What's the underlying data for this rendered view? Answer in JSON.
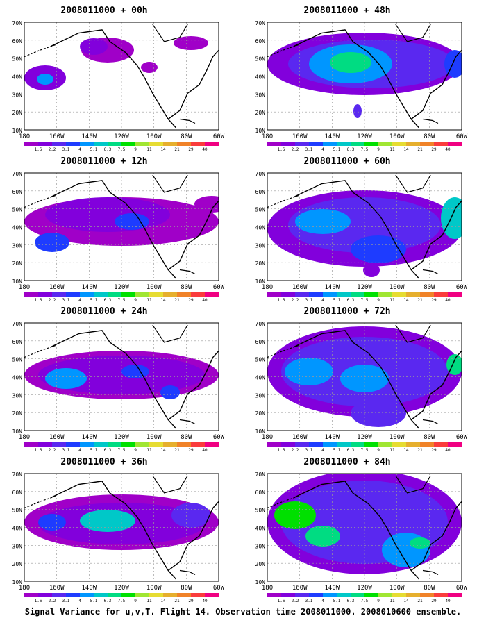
{
  "caption": "Signal Variance for u,v,T. Flight 14. Observation time 2008011000. 2008010600 ensemble.",
  "lat_labels": [
    "70N",
    "60N",
    "50N",
    "40N",
    "30N",
    "20N",
    "10N"
  ],
  "lon_labels": [
    "180",
    "160W",
    "140W",
    "120W",
    "100W",
    "80W",
    "60W"
  ],
  "colorbar": {
    "labels": [
      "1.6",
      "2.2",
      "3.1",
      "4",
      "5.1",
      "6.3",
      "7.5",
      "9",
      "11",
      "14",
      "21",
      "29",
      "40"
    ],
    "colors": [
      "#a000c8",
      "#8200dc",
      "#5a28f0",
      "#1e3cff",
      "#0096ff",
      "#00c8c8",
      "#00dc82",
      "#00e000",
      "#a0e632",
      "#e6dc32",
      "#e6af2d",
      "#f08228",
      "#fa3c3c",
      "#f00082"
    ]
  },
  "panels": [
    {
      "id": "p00",
      "title": "2008011000 + 00h"
    },
    {
      "id": "p48",
      "title": "2008011000 + 48h"
    },
    {
      "id": "p12",
      "title": "2008011000 + 12h"
    },
    {
      "id": "p60",
      "title": "2008011000 + 60h"
    },
    {
      "id": "p24",
      "title": "2008011000 + 24h"
    },
    {
      "id": "p72",
      "title": "2008011000 + 72h"
    },
    {
      "id": "p36",
      "title": "2008011000 + 36h"
    },
    {
      "id": "p84",
      "title": "2008011000 + 84h"
    }
  ]
}
